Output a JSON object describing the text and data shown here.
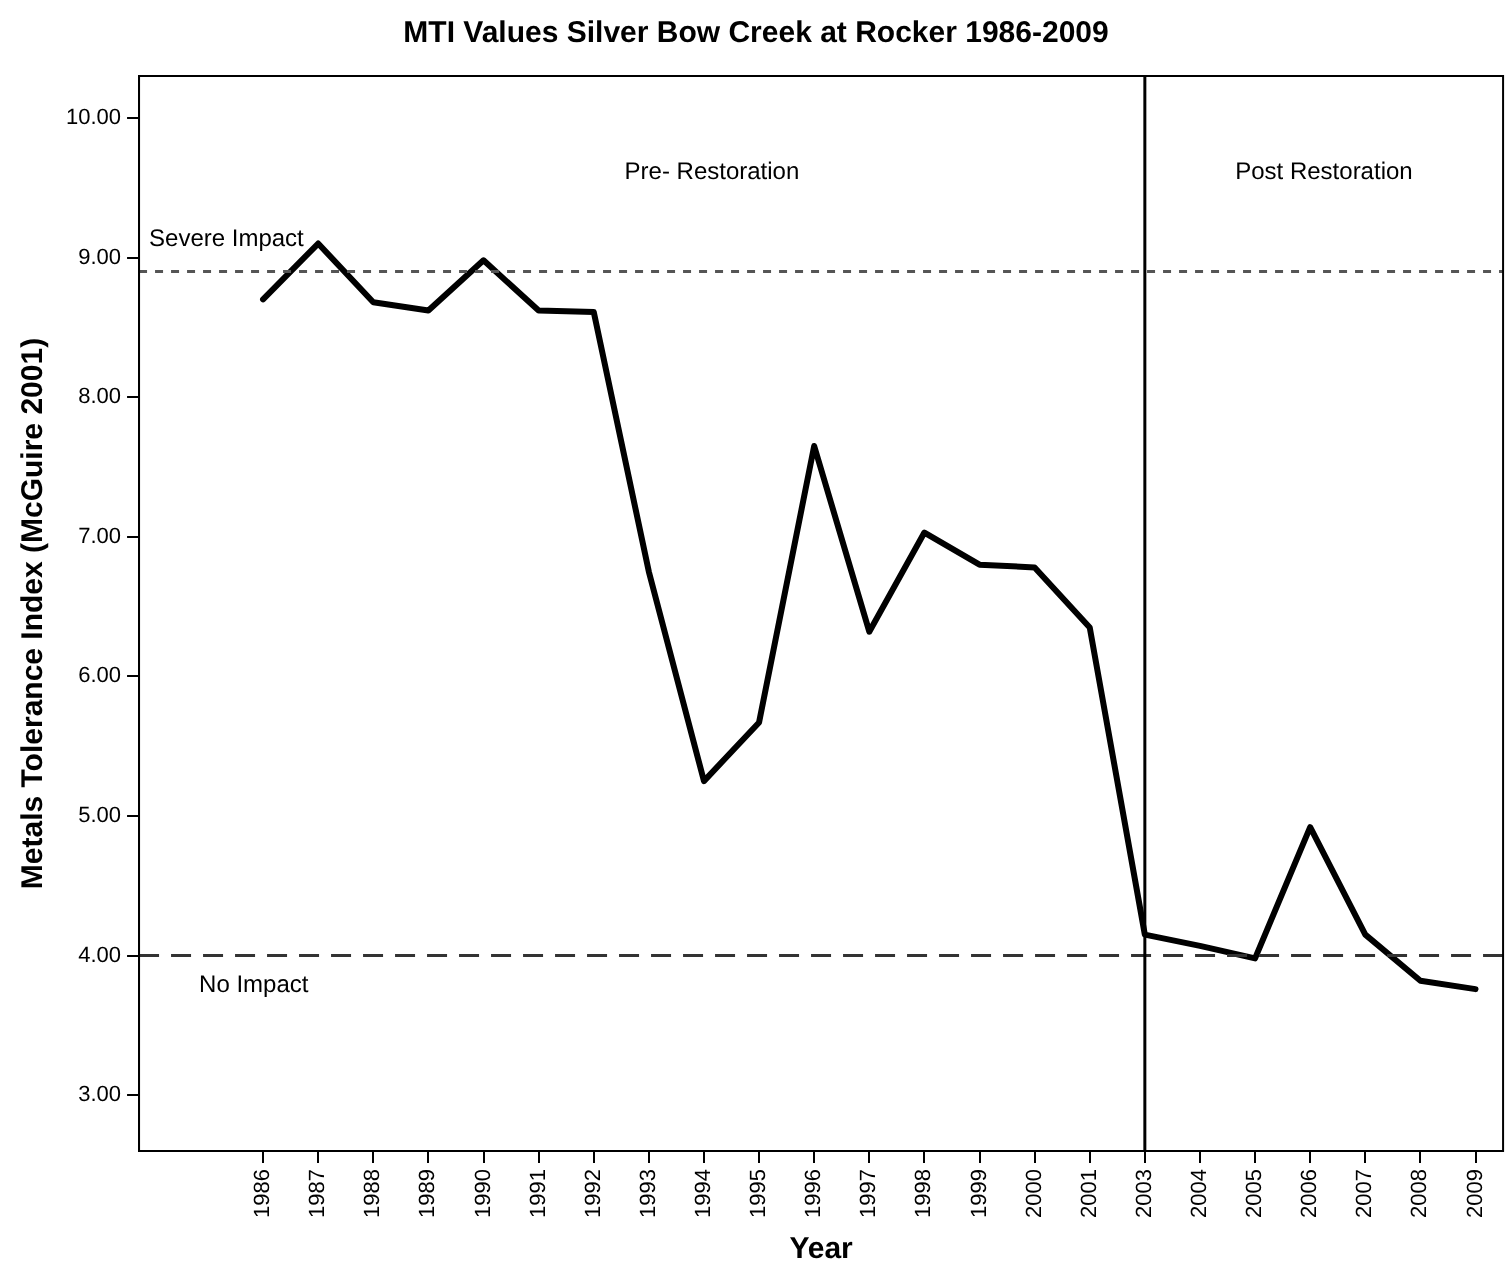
{
  "chart_data": {
    "type": "line",
    "title": "MTI Values Silver Bow Creek at Rocker 1986-2009",
    "xlabel": "Year",
    "ylabel": "Metals Tolerance Index (McGuire 2001)",
    "categories": [
      "1986",
      "1987",
      "1988",
      "1989",
      "1990",
      "1991",
      "1992",
      "1993",
      "1994",
      "1995",
      "1996",
      "1997",
      "1998",
      "1999",
      "2000",
      "2001",
      "2003",
      "2004",
      "2005",
      "2006",
      "2007",
      "2008",
      "2009"
    ],
    "series": [
      {
        "color": "#000000",
        "values": [
          8.7,
          9.1,
          8.68,
          8.62,
          8.98,
          8.62,
          8.61,
          6.75,
          5.25,
          5.67,
          7.65,
          6.32,
          7.03,
          6.8,
          6.78,
          6.35,
          4.15,
          4.07,
          3.98,
          4.92,
          4.15,
          3.82,
          3.76
        ]
      }
    ],
    "ylim": [
      2.6,
      10.3
    ],
    "yticks": [
      {
        "value": 3,
        "label": "3.00"
      },
      {
        "value": 4,
        "label": "4.00"
      },
      {
        "value": 5,
        "label": "5.00"
      },
      {
        "value": 6,
        "label": "6.00"
      },
      {
        "value": 7,
        "label": "7.00"
      },
      {
        "value": 8,
        "label": "8.00"
      },
      {
        "value": 9,
        "label": "9.00"
      },
      {
        "value": 10,
        "label": "10.00"
      }
    ],
    "ref_lines": [
      {
        "axis": "y",
        "value": 8.9,
        "label": "Severe Impact",
        "line_style": "dotted",
        "color": "#555555"
      },
      {
        "axis": "y",
        "value": 4,
        "label": "No Impact",
        "line_style": "dashed",
        "color": "#333333"
      },
      {
        "axis": "x",
        "value": "2003",
        "line_style": "solid",
        "color": "#000000"
      }
    ],
    "annotations": [
      "Pre- Restoration",
      "Post Restoration"
    ],
    "grid": false,
    "legend": false,
    "marker": "none",
    "line_style": "solid"
  }
}
